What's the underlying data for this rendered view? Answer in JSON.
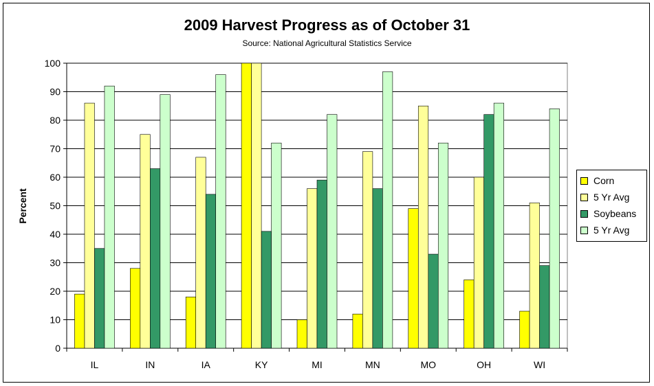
{
  "chart_data": {
    "type": "bar",
    "title": "2009 Harvest Progress as of October 31",
    "subtitle": "Source: National Agricultural Statistics Service",
    "xlabel": "",
    "ylabel": "Percent",
    "ylim": [
      0,
      100
    ],
    "yticks": [
      "0",
      "10",
      "20",
      "30",
      "40",
      "50",
      "60",
      "70",
      "80",
      "90",
      "100"
    ],
    "grid": true,
    "legend_position": "right",
    "categories": [
      "IL",
      "IN",
      "IA",
      "KY",
      "MI",
      "MN",
      "MO",
      "OH",
      "WI"
    ],
    "series": [
      {
        "name": "Corn",
        "color": "#ffff00",
        "values": [
          19,
          28,
          18,
          100,
          10,
          12,
          49,
          24,
          13
        ]
      },
      {
        "name": "5 Yr Avg",
        "color": "#ffff99",
        "values": [
          86,
          75,
          67,
          100,
          56,
          69,
          85,
          60,
          51
        ]
      },
      {
        "name": "Soybeans",
        "color": "#339966",
        "values": [
          35,
          63,
          54,
          41,
          59,
          56,
          33,
          82,
          29
        ]
      },
      {
        "name": "5 Yr Avg",
        "color": "#ccffcc",
        "values": [
          92,
          89,
          96,
          72,
          82,
          97,
          72,
          86,
          84
        ]
      }
    ]
  }
}
